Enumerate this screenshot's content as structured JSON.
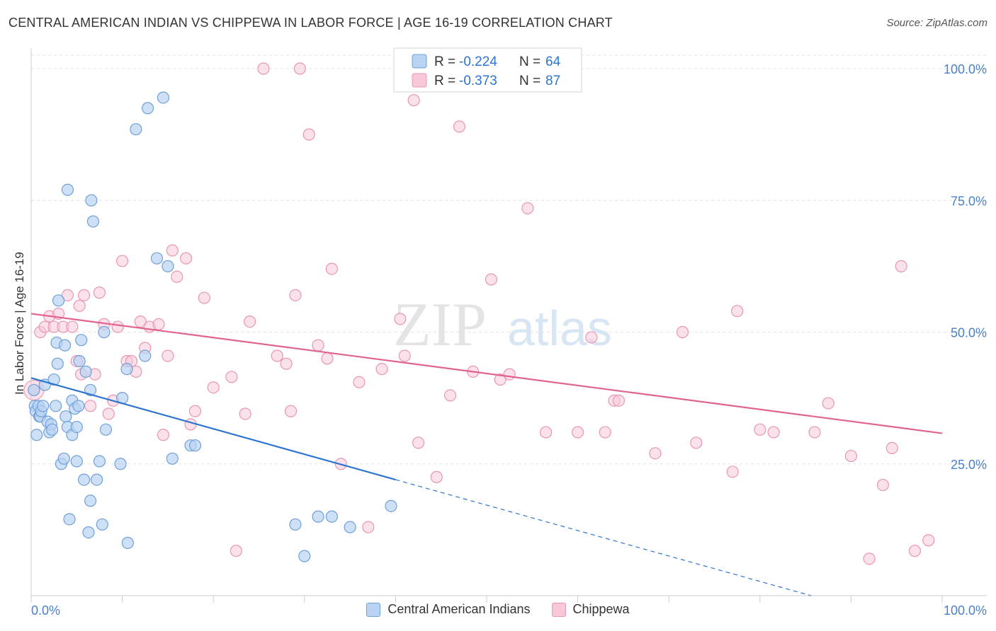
{
  "title": "CENTRAL AMERICAN INDIAN VS CHIPPEWA IN LABOR FORCE | AGE 16-19 CORRELATION CHART",
  "source": "Source: ZipAtlas.com",
  "watermark": {
    "zip": "ZIP",
    "atlas": "atlas"
  },
  "colors": {
    "blue_fill": "#b9d3f2",
    "blue_stroke": "#6fa0d8",
    "blue_line": "#2d74d0",
    "pink_fill": "#f8c8d8",
    "pink_stroke": "#e896b2",
    "pink_line": "#e0648e",
    "axis_text": "#4a7fc9"
  },
  "legend": {
    "r_label": "R =",
    "n_label": "N =",
    "rows": [
      {
        "series": "Central American Indians",
        "r": "-0.224",
        "n": "64"
      },
      {
        "series": "Chippewa",
        "r": "-0.373",
        "n": "87"
      }
    ]
  },
  "chart_data": {
    "type": "scatter",
    "xlabel": "",
    "ylabel": "In Labor Force | Age 16-19",
    "xlim": [
      0,
      100
    ],
    "ylim": [
      0,
      100
    ],
    "x_tick_labels": {
      "left": "0.0%",
      "right": "100.0%"
    },
    "y_tick_labels": [
      "25.0%",
      "50.0%",
      "75.0%",
      "100.0%"
    ],
    "y_ticks": [
      25,
      50,
      75,
      100
    ],
    "series": [
      {
        "name": "Central American Indians",
        "color": "blue",
        "trend": {
          "x0": 0,
          "y0": 41.3,
          "x1": 40,
          "y1": 22.0,
          "dashed_to_x": 100
        },
        "points": [
          [
            0.3,
            39
          ],
          [
            0.4,
            36
          ],
          [
            0.5,
            35
          ],
          [
            0.6,
            30.5
          ],
          [
            0.8,
            36
          ],
          [
            0.9,
            34
          ],
          [
            1.0,
            34
          ],
          [
            1.1,
            35
          ],
          [
            1.3,
            36
          ],
          [
            1.5,
            40
          ],
          [
            1.8,
            33
          ],
          [
            2.0,
            31
          ],
          [
            2.2,
            32.5
          ],
          [
            2.3,
            31.5
          ],
          [
            2.5,
            41
          ],
          [
            2.7,
            36
          ],
          [
            2.8,
            48
          ],
          [
            2.9,
            44
          ],
          [
            3.0,
            56
          ],
          [
            3.3,
            25
          ],
          [
            3.6,
            26
          ],
          [
            3.7,
            47.5
          ],
          [
            3.8,
            34
          ],
          [
            4.0,
            32
          ],
          [
            4.0,
            77
          ],
          [
            4.2,
            14.5
          ],
          [
            4.5,
            37
          ],
          [
            4.5,
            30.5
          ],
          [
            4.8,
            35.5
          ],
          [
            5.0,
            32
          ],
          [
            5.0,
            25.5
          ],
          [
            5.2,
            36
          ],
          [
            5.3,
            44.5
          ],
          [
            5.5,
            48.5
          ],
          [
            5.8,
            22
          ],
          [
            6.0,
            42.5
          ],
          [
            6.3,
            12
          ],
          [
            6.5,
            39
          ],
          [
            6.5,
            18
          ],
          [
            6.6,
            75
          ],
          [
            6.8,
            71
          ],
          [
            7.2,
            22
          ],
          [
            7.5,
            25.5
          ],
          [
            7.8,
            13.5
          ],
          [
            8.0,
            50
          ],
          [
            8.2,
            31.5
          ],
          [
            9.8,
            25
          ],
          [
            10.0,
            37.5
          ],
          [
            10.5,
            43
          ],
          [
            10.6,
            10
          ],
          [
            11.5,
            88.5
          ],
          [
            12.5,
            45.5
          ],
          [
            12.8,
            92.5
          ],
          [
            13.8,
            64
          ],
          [
            14.5,
            94.5
          ],
          [
            15.0,
            62.5
          ],
          [
            15.5,
            26
          ],
          [
            17.5,
            28.5
          ],
          [
            18.0,
            28.5
          ],
          [
            29.0,
            13.5
          ],
          [
            30.0,
            7.5
          ],
          [
            31.5,
            15
          ],
          [
            33.0,
            15
          ],
          [
            35.0,
            13
          ],
          [
            39.5,
            17
          ]
        ]
      },
      {
        "name": "Chippewa",
        "color": "pink",
        "trend": {
          "x0": 0,
          "y0": 53.5,
          "x1": 100,
          "y1": 30.8
        },
        "points": [
          [
            0.3,
            39
          ],
          [
            1.0,
            50
          ],
          [
            1.5,
            51
          ],
          [
            2.0,
            53
          ],
          [
            2.5,
            51
          ],
          [
            3.0,
            53.5
          ],
          [
            3.5,
            51
          ],
          [
            4.0,
            57
          ],
          [
            4.5,
            51
          ],
          [
            5.0,
            44.5
          ],
          [
            5.3,
            55
          ],
          [
            5.5,
            42
          ],
          [
            5.8,
            57
          ],
          [
            6.5,
            36
          ],
          [
            7.0,
            42
          ],
          [
            7.5,
            57.5
          ],
          [
            8.0,
            51.5
          ],
          [
            8.5,
            34.5
          ],
          [
            9.0,
            37
          ],
          [
            9.5,
            51
          ],
          [
            10.0,
            63.5
          ],
          [
            10.5,
            44.5
          ],
          [
            11.0,
            44.5
          ],
          [
            11.5,
            42.5
          ],
          [
            12.0,
            52
          ],
          [
            12.5,
            47
          ],
          [
            13.0,
            51
          ],
          [
            14.0,
            51.5
          ],
          [
            14.5,
            30.5
          ],
          [
            15.0,
            45.5
          ],
          [
            15.5,
            65.5
          ],
          [
            16.0,
            60.5
          ],
          [
            17.0,
            64
          ],
          [
            17.5,
            32.5
          ],
          [
            18.0,
            35
          ],
          [
            19.0,
            56.5
          ],
          [
            20.0,
            39.5
          ],
          [
            22.0,
            41.5
          ],
          [
            22.5,
            8.5
          ],
          [
            23.5,
            34.5
          ],
          [
            24.0,
            52
          ],
          [
            25.5,
            100
          ],
          [
            27.0,
            45.5
          ],
          [
            28.0,
            44
          ],
          [
            28.5,
            35
          ],
          [
            29.0,
            57
          ],
          [
            29.5,
            100
          ],
          [
            30.5,
            87.5
          ],
          [
            31.5,
            47.5
          ],
          [
            32.5,
            45
          ],
          [
            33.0,
            62
          ],
          [
            34.0,
            25
          ],
          [
            36.0,
            40.5
          ],
          [
            37.0,
            13
          ],
          [
            38.5,
            43
          ],
          [
            40.5,
            52.5
          ],
          [
            41.0,
            45.5
          ],
          [
            42.0,
            94
          ],
          [
            42.5,
            29
          ],
          [
            44.5,
            22.5
          ],
          [
            46.0,
            38
          ],
          [
            47.0,
            89
          ],
          [
            48.5,
            42.5
          ],
          [
            50.5,
            60
          ],
          [
            51.5,
            41
          ],
          [
            52.5,
            42
          ],
          [
            54.5,
            73.5
          ],
          [
            56.5,
            31
          ],
          [
            60.0,
            31
          ],
          [
            61.5,
            49
          ],
          [
            63.0,
            31
          ],
          [
            64.0,
            37
          ],
          [
            64.5,
            37
          ],
          [
            68.5,
            27
          ],
          [
            71.5,
            50
          ],
          [
            73.0,
            29
          ],
          [
            77.0,
            23.5
          ],
          [
            77.5,
            54
          ],
          [
            80.0,
            31.5
          ],
          [
            81.5,
            31
          ],
          [
            86.0,
            31
          ],
          [
            87.5,
            36.5
          ],
          [
            90.0,
            26.5
          ],
          [
            92.0,
            7
          ],
          [
            93.5,
            21
          ],
          [
            94.5,
            28
          ],
          [
            95.5,
            62.5
          ],
          [
            97.0,
            8.5
          ],
          [
            98.5,
            10.5
          ]
        ]
      }
    ]
  }
}
